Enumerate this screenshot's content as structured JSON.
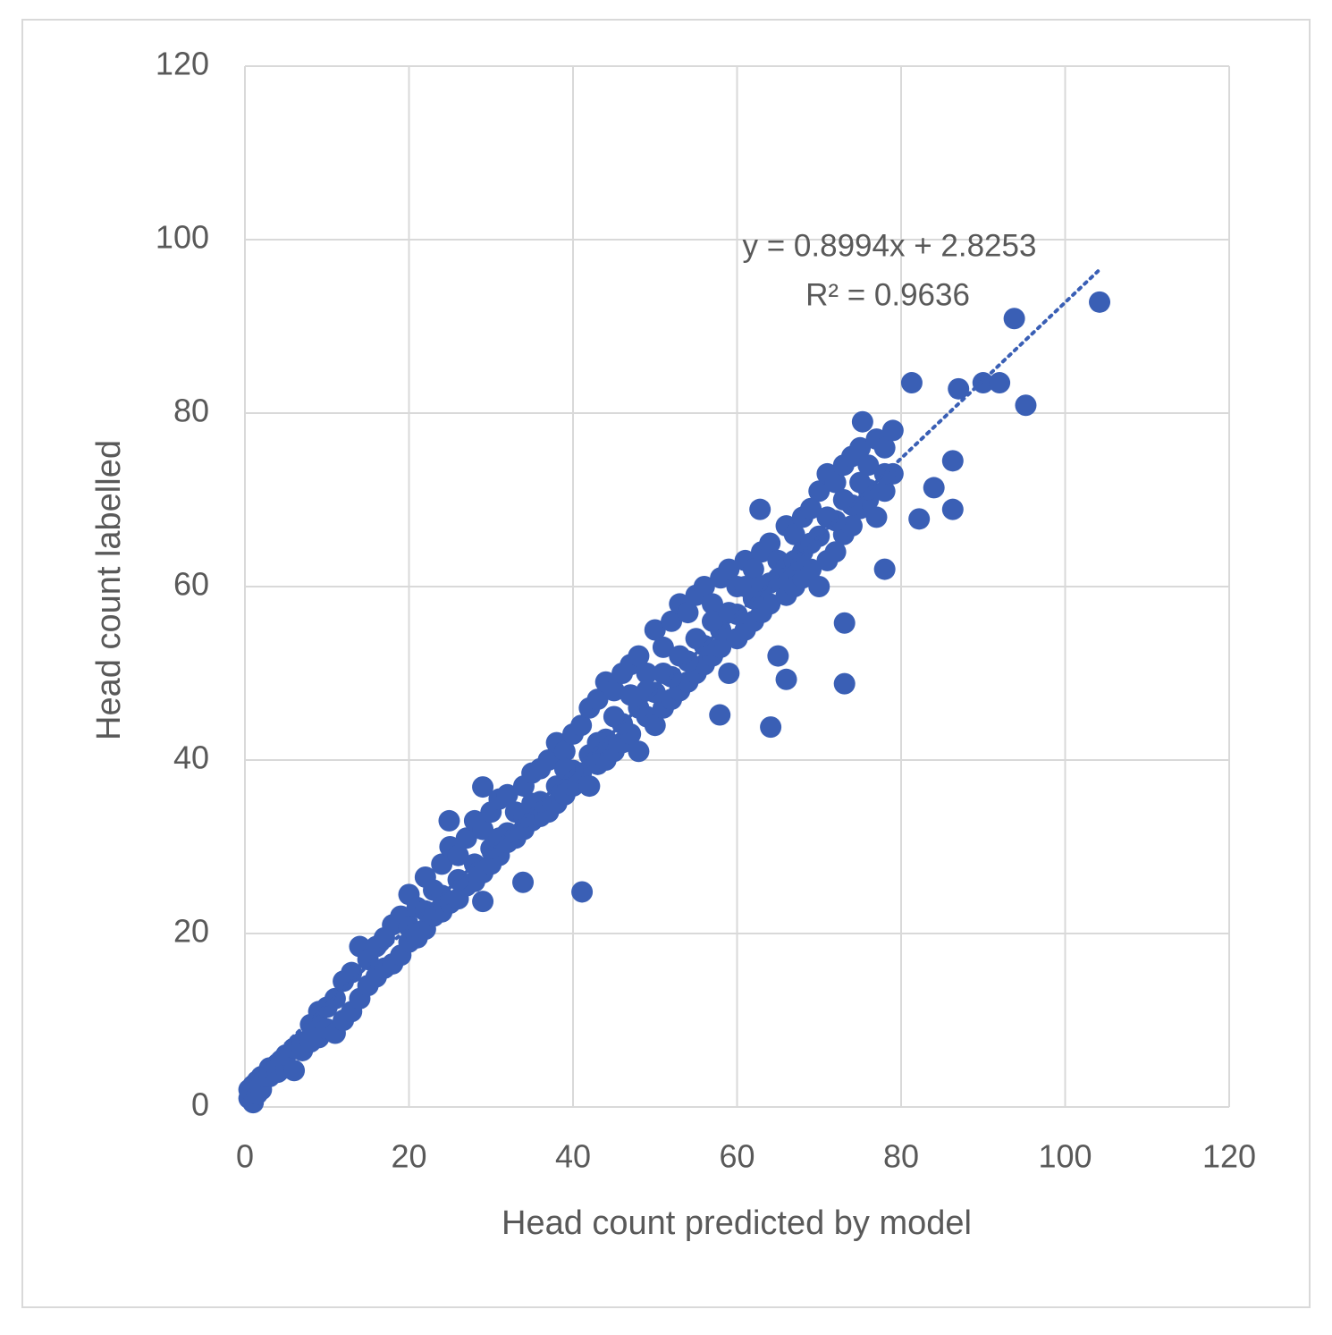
{
  "chart_data": {
    "type": "scatter",
    "x_label": "Head count predicted by model",
    "y_label": "Head count labelled",
    "color": "#3a5fb5",
    "xlim": [
      0,
      120
    ],
    "ylim": [
      0,
      120
    ],
    "xticks": [
      0,
      20,
      40,
      60,
      80,
      100,
      120
    ],
    "yticks": [
      0,
      20,
      40,
      60,
      80,
      100,
      120
    ],
    "grid": true,
    "trendline": {
      "slope": 0.8994,
      "intercept": 2.8253,
      "x": [
        0,
        104
      ]
    },
    "annotations": [
      "y = 0.8994x + 2.8253",
      "R² = 0.9636"
    ],
    "x": [
      0.5,
      0.5,
      1,
      1,
      1.5,
      1.5,
      2,
      2,
      3,
      3,
      4,
      4,
      5,
      5,
      6,
      6,
      7,
      7,
      8,
      8,
      9,
      9,
      10,
      10,
      11,
      11,
      12,
      12,
      13,
      13,
      14,
      14,
      15,
      15,
      16,
      16,
      17,
      17,
      18,
      18,
      19,
      19,
      20,
      20,
      21,
      21,
      22,
      22,
      23,
      23,
      24,
      24,
      25,
      25,
      26,
      26,
      27,
      27,
      28,
      28,
      29,
      29,
      30,
      30,
      31,
      31,
      32,
      32,
      33,
      33,
      34,
      34,
      35,
      35,
      36,
      36,
      37,
      37,
      38,
      38,
      39,
      39,
      40,
      40,
      41,
      41,
      42,
      42,
      43,
      43,
      44,
      44,
      45,
      45,
      46,
      46,
      47,
      47,
      48,
      48,
      49,
      49,
      50,
      50,
      51,
      51,
      52,
      52,
      53,
      53,
      54,
      54,
      55,
      55,
      56,
      56,
      57,
      57,
      58,
      58,
      59,
      59,
      60,
      60,
      61,
      61,
      62,
      62,
      63,
      63,
      64,
      64,
      65,
      65,
      66,
      66,
      67,
      67,
      68,
      68,
      69,
      69,
      70,
      70,
      71,
      71,
      72,
      72,
      73,
      73,
      74,
      74,
      75,
      75,
      76,
      76,
      77,
      77,
      78,
      78,
      79,
      79,
      20,
      22,
      24,
      26,
      28,
      30,
      32,
      34,
      36,
      38,
      40,
      42,
      44,
      46,
      48,
      50,
      52,
      54,
      56,
      58,
      60,
      62,
      64,
      66,
      68,
      70,
      72,
      74,
      76,
      78,
      45,
      47,
      51,
      53,
      55,
      57,
      59,
      61,
      63,
      65,
      67,
      69,
      71,
      73,
      75,
      49,
      43,
      39,
      35,
      31,
      104.2,
      93.8,
      95.2,
      81.3,
      87,
      90,
      92,
      82.2,
      84,
      86.3,
      86.3,
      78,
      73.1,
      73.1,
      64.1,
      41.1,
      62.8,
      75.3,
      33.9,
      29,
      24.9,
      29,
      57.9,
      66
    ],
    "values": [
      1,
      2,
      0.5,
      2.5,
      1.5,
      3,
      2,
      3.5,
      3.5,
      4.5,
      4,
      5,
      4.5,
      6,
      4.2,
      6.8,
      6.5,
      7.5,
      7.5,
      9.5,
      8,
      11,
      9,
      11.5,
      8.5,
      12.5,
      10,
      14.5,
      11,
      15.5,
      12.5,
      18.5,
      14,
      17,
      15,
      18.5,
      16,
      19.5,
      16.5,
      21,
      17.5,
      22,
      19,
      24.5,
      19.5,
      23,
      20.5,
      26.5,
      22,
      25,
      22.5,
      28,
      23.5,
      30,
      24,
      29,
      25.5,
      31,
      26,
      33,
      27,
      32,
      28,
      34,
      29,
      35.5,
      30.5,
      36,
      31,
      34,
      32,
      37,
      33,
      38.5,
      33.5,
      39,
      34,
      40,
      35,
      42,
      36,
      41,
      37,
      43,
      38.5,
      44,
      37,
      46,
      39.5,
      47,
      40,
      49,
      41,
      48,
      42,
      50,
      43,
      51,
      41,
      52,
      45,
      50,
      44,
      55,
      46,
      53,
      47,
      56,
      48,
      58,
      49,
      57,
      50,
      59,
      51,
      60,
      52,
      58,
      53,
      61,
      50,
      62,
      54,
      60,
      55,
      63,
      56,
      62,
      57,
      64,
      58,
      65,
      52,
      63,
      59,
      67,
      60,
      66,
      61,
      68,
      62,
      69,
      60,
      71,
      63,
      73,
      64,
      72,
      66,
      74,
      67,
      75,
      69,
      76,
      70,
      74,
      68,
      77,
      71,
      76,
      73,
      78,
      20.8,
      22.6,
      24.4,
      26.2,
      28,
      29.8,
      31.6,
      33.4,
      35.2,
      37,
      38.8,
      40.6,
      42.4,
      44.2,
      46,
      47.8,
      49.6,
      51.4,
      53.2,
      55,
      56.8,
      58.6,
      60.4,
      62.2,
      64,
      65.8,
      67.6,
      69.4,
      71.2,
      73,
      45,
      47.5,
      50,
      52,
      54,
      56,
      57,
      60,
      60,
      61,
      63,
      65,
      68,
      70,
      72,
      48,
      42,
      39,
      35,
      31,
      92.8,
      90.9,
      80.9,
      83.5,
      82.8,
      83.5,
      83.5,
      67.8,
      71.4,
      68.9,
      74.5,
      62,
      48.8,
      55.8,
      43.8,
      24.8,
      68.9,
      79,
      25.9,
      23.7,
      33,
      36.9,
      45.2,
      49.3
    ]
  }
}
